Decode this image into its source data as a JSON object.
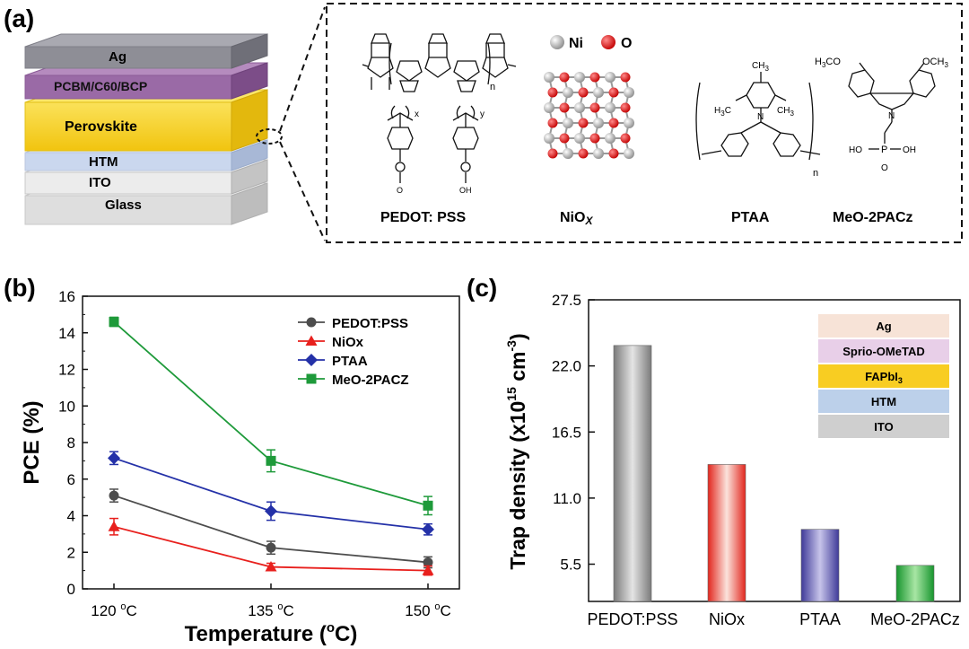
{
  "panels": {
    "a": "(a)",
    "b": "(b)",
    "c": "(c)"
  },
  "stack_a": {
    "layers": [
      {
        "label": "Ag",
        "color": "#8e8e96"
      },
      {
        "label": "PCBM/C60/BCP",
        "color": "#9a6aa6"
      },
      {
        "label": "Perovskite",
        "color": "#f6d51c"
      },
      {
        "label": "HTM",
        "color": "#c9d6ec"
      },
      {
        "label": "ITO",
        "color": "#e6e6e6"
      },
      {
        "label": "Glass",
        "color": "#dcdcdc"
      }
    ]
  },
  "molecules": {
    "pedot_label": "PEDOT: PSS",
    "pedot_n": "n",
    "pss_x": "x",
    "pss_y": "y",
    "pss_o1": "O",
    "pss_o2": "OH",
    "niox_label_main": "NiO",
    "niox_label_sub": "X",
    "ni_legend": "Ni",
    "o_legend": "O",
    "ptaa_label": "PTAA",
    "ptaa_ch3_top": "CH",
    "ptaa_ch3_left": "H",
    "ptaa_ch3_right": "CH",
    "ptaa_n": "N",
    "ptaa_sub_n": "n",
    "meo_label": "MeO-2PACz",
    "meo_och3_left": "H",
    "meo_och3_right": "OCH",
    "meo_n": "N",
    "meo_p": "P",
    "meo_oh": "OH",
    "meo_o": "O",
    "meo_ho": "HO",
    "sub3": "3",
    "h3c": "C"
  },
  "chart_b": {
    "title": "",
    "xlabel": "Temperature (",
    "xlabel_sup": "o",
    "xlabel_end": "C)",
    "ylabel": "PCE (%)",
    "x_ticks": [
      "120",
      "135",
      "150"
    ],
    "tick_suffix_sup": "o",
    "tick_suffix": "C",
    "y_ticks": [
      "0",
      "2",
      "4",
      "6",
      "8",
      "10",
      "12",
      "14",
      "16"
    ],
    "legend_position": "top-right"
  },
  "chart_c": {
    "ylabel_main": "Trap density (x10",
    "ylabel_sup": "15",
    "ylabel_mid": " cm",
    "ylabel_sup2": "-3",
    "ylabel_end": ")",
    "y_ticks": [
      "5.5",
      "11.0",
      "16.5",
      "22.0",
      "27.5"
    ],
    "inset_layers": [
      {
        "label": "Ag",
        "color": "#f7e3d7"
      },
      {
        "label": "Sprio-OMeTAD",
        "color": "#e8cfe8"
      },
      {
        "label": "FAPbI",
        "sub": "3",
        "color": "#f8cd22"
      },
      {
        "label": "HTM",
        "color": "#bcd0ea"
      },
      {
        "label": "ITO",
        "color": "#cfcfcf"
      }
    ]
  },
  "chart_data": [
    {
      "type": "line",
      "x": [
        120,
        135,
        150
      ],
      "xlabel": "Temperature (oC)",
      "ylabel": "PCE (%)",
      "xlim": [
        117,
        153
      ],
      "ylim": [
        0,
        16
      ],
      "grid": false,
      "legend": "top-right",
      "series": [
        {
          "name": "PEDOT:PSS",
          "color": "#4d4d4d",
          "marker": "circle",
          "values": [
            5.1,
            2.25,
            1.45
          ],
          "errors": [
            0.35,
            0.35,
            0.3
          ]
        },
        {
          "name": "NiOx",
          "color": "#e8201d",
          "marker": "triangle",
          "values": [
            3.4,
            1.2,
            1.0
          ],
          "errors": [
            0.45,
            0.2,
            0.25
          ]
        },
        {
          "name": "PTAA",
          "color": "#2431a8",
          "marker": "diamond",
          "values": [
            7.15,
            4.25,
            3.25
          ],
          "errors": [
            0.35,
            0.5,
            0.3
          ]
        },
        {
          "name": "MeO-2PACZ",
          "color": "#1e9a3a",
          "marker": "square",
          "values": [
            14.6,
            7.0,
            4.55
          ],
          "errors": [
            0.25,
            0.6,
            0.5
          ]
        }
      ]
    },
    {
      "type": "bar",
      "categories": [
        "PEDOT:PSS",
        "NiOx",
        "PTAA",
        "MeO-2PACz"
      ],
      "values": [
        23.7,
        13.8,
        8.4,
        5.4
      ],
      "ylabel": "Trap density (x10^15 cm^-3)",
      "ylim": [
        2.4,
        27.5
      ],
      "grid": false,
      "colors": [
        "#8a8a8a",
        "#e8413a",
        "#5f5aa8",
        "#29a33c"
      ]
    }
  ]
}
